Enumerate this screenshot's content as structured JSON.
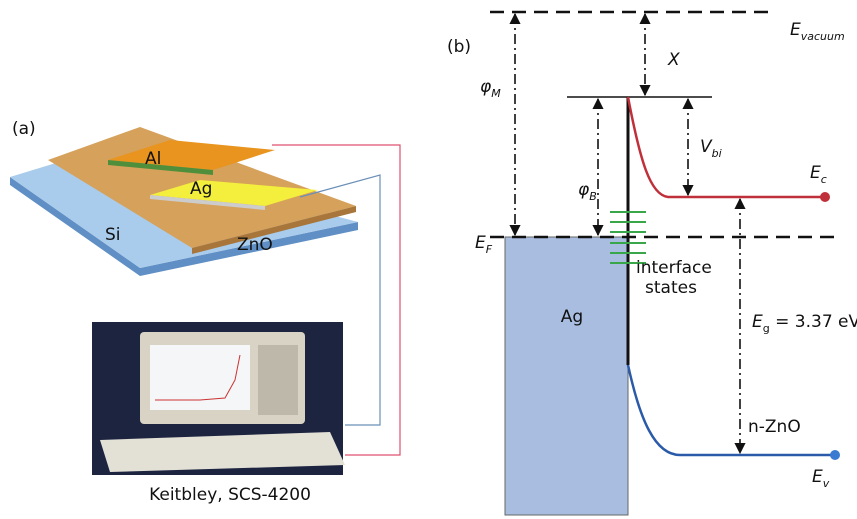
{
  "panel_a": {
    "label": "(a)",
    "layers": {
      "al": "Al",
      "ag": "Ag",
      "zno": "ZnO",
      "si": "Si"
    },
    "instrument_caption": "Keitbley, SCS-4200"
  },
  "panel_b": {
    "label": "(b)",
    "e_vacuum": {
      "symbol": "E",
      "subscript": "vacuum"
    },
    "chi": "X",
    "phi_m": {
      "symbol": "φ",
      "subscript": "M"
    },
    "phi_b": {
      "symbol": "φ",
      "subscript": "B"
    },
    "v_bi": {
      "symbol": "V",
      "subscript": "bi"
    },
    "e_c": {
      "symbol": "E",
      "subscript": "c"
    },
    "e_f": {
      "symbol": "E",
      "subscript": "F"
    },
    "metal": "Ag",
    "interface_states": [
      "interface",
      "states"
    ],
    "e_g": {
      "symbol": "E",
      "subscript": "g",
      "text": " = 3.37 eV"
    },
    "semiconductor": "n-ZnO",
    "e_v": {
      "symbol": "E",
      "subscript": "v"
    }
  }
}
